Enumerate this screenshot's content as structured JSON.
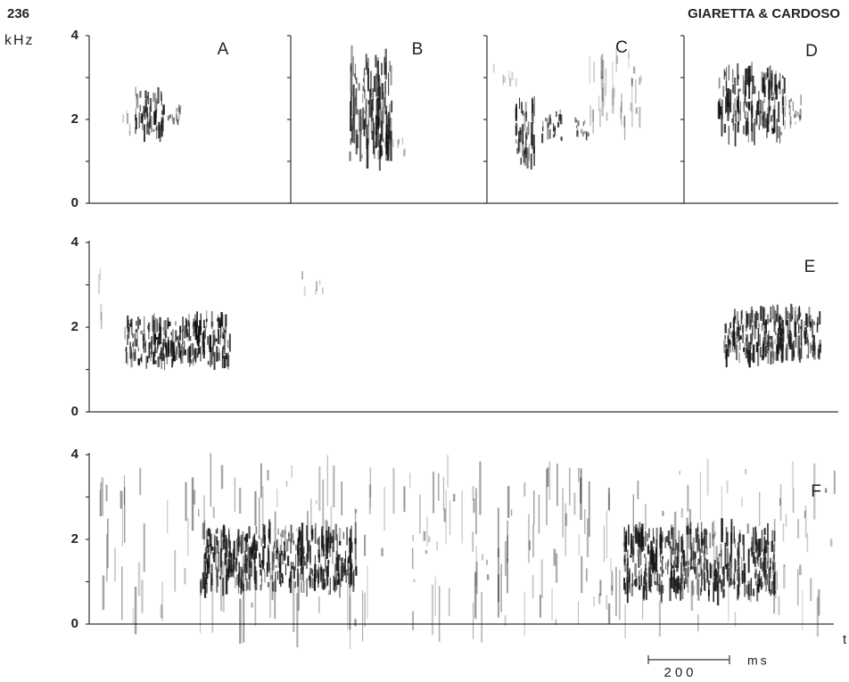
{
  "header": {
    "page_number": "236",
    "authors": "GIARETTA & CARDOSO"
  },
  "y_axis_label": "kHz",
  "rows": [
    {
      "panels": [
        "A",
        "B",
        "C",
        "D"
      ],
      "yticks": [
        4,
        2,
        0
      ]
    },
    {
      "panels": [
        "E"
      ],
      "yticks": [
        4,
        2,
        0
      ]
    },
    {
      "panels": [
        "F"
      ],
      "yticks": [
        4,
        2,
        0
      ]
    }
  ],
  "time_axis_label": "t",
  "scale_bar": {
    "value": "200",
    "unit": "ms"
  }
}
